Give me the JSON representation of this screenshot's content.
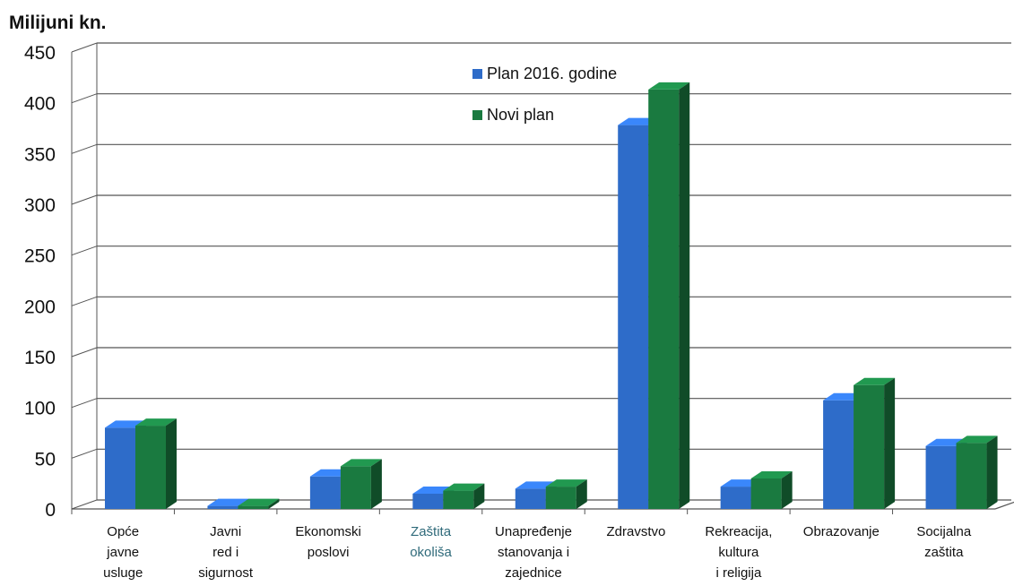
{
  "chart_data": {
    "type": "bar",
    "ylabel": "Milijuni kn.",
    "ylim": [
      0,
      450
    ],
    "yticks": [
      0,
      50,
      100,
      150,
      200,
      250,
      300,
      350,
      400,
      450
    ],
    "grid": true,
    "legend_position": "top-center",
    "categories": [
      [
        "Opće",
        "javne",
        "usluge"
      ],
      [
        "Javni",
        "red i",
        "sigurnost"
      ],
      [
        "Ekonomski",
        "poslovi"
      ],
      [
        "Zaštita",
        "okoliša"
      ],
      [
        "Unapređenje",
        "stanovanja i",
        "zajednice"
      ],
      [
        "Zdravstvo"
      ],
      [
        "Rekreacija,",
        "kultura",
        "i religija"
      ],
      [
        "Obrazovanje"
      ],
      [
        "Socijalna",
        "zaštita"
      ]
    ],
    "series": [
      {
        "name": "Plan 2016. godine",
        "color": "#2E6CC9",
        "values": [
          80,
          3,
          32,
          15,
          20,
          378,
          22,
          107,
          62
        ]
      },
      {
        "name": "Novi plan",
        "color": "#1A7A40",
        "values": [
          82,
          3,
          42,
          18,
          22,
          413,
          30,
          122,
          65
        ]
      }
    ]
  },
  "colors": {
    "grid": "#555555",
    "axis_text": "#111111",
    "highlight_category_text": "#2F6A7A"
  }
}
